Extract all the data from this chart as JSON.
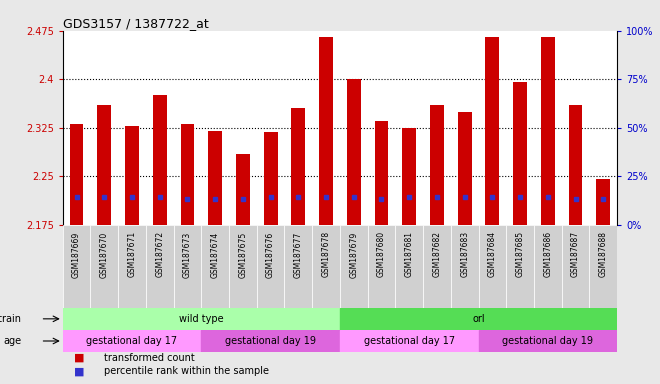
{
  "title": "GDS3157 / 1387722_at",
  "samples": [
    "GSM187669",
    "GSM187670",
    "GSM187671",
    "GSM187672",
    "GSM187673",
    "GSM187674",
    "GSM187675",
    "GSM187676",
    "GSM187677",
    "GSM187678",
    "GSM187679",
    "GSM187680",
    "GSM187681",
    "GSM187682",
    "GSM187683",
    "GSM187684",
    "GSM187685",
    "GSM187686",
    "GSM187687",
    "GSM187688"
  ],
  "transformed_counts": [
    2.33,
    2.36,
    2.328,
    2.375,
    2.33,
    2.32,
    2.285,
    2.318,
    2.355,
    2.465,
    2.4,
    2.335,
    2.325,
    2.36,
    2.35,
    2.465,
    2.395,
    2.465,
    2.36,
    2.245
  ],
  "percentile_ranks": [
    14,
    14,
    14,
    14,
    13,
    13,
    13,
    14,
    14,
    14,
    14,
    13,
    14,
    14,
    14,
    14,
    14,
    14,
    13,
    13
  ],
  "ymin": 2.175,
  "ymax": 2.475,
  "yticks_left": [
    2.175,
    2.25,
    2.325,
    2.4,
    2.475
  ],
  "yticks_right": [
    0,
    25,
    50,
    75,
    100
  ],
  "bar_color": "#cc0000",
  "blue_color": "#3333cc",
  "background_color": "#e8e8e8",
  "plot_bg": "#ffffff",
  "xtick_bg": "#d0d0d0",
  "strain_groups": [
    {
      "label": "wild type",
      "start": 0,
      "end": 9,
      "color": "#aaffaa"
    },
    {
      "label": "orl",
      "start": 10,
      "end": 19,
      "color": "#55dd55"
    }
  ],
  "age_groups": [
    {
      "label": "gestational day 17",
      "start": 0,
      "end": 4,
      "color": "#ff99ff"
    },
    {
      "label": "gestational day 19",
      "start": 5,
      "end": 9,
      "color": "#dd66dd"
    },
    {
      "label": "gestational day 17",
      "start": 10,
      "end": 14,
      "color": "#ff99ff"
    },
    {
      "label": "gestational day 19",
      "start": 15,
      "end": 19,
      "color": "#dd66dd"
    }
  ],
  "legend_items": [
    {
      "label": "transformed count",
      "color": "#cc0000"
    },
    {
      "label": "percentile rank within the sample",
      "color": "#3333cc"
    }
  ],
  "bar_width": 0.5,
  "gridline_color": "#000000",
  "tick_color_left": "#cc0000",
  "tick_color_right": "#0000cc",
  "strain_label": "strain",
  "age_label": "age"
}
